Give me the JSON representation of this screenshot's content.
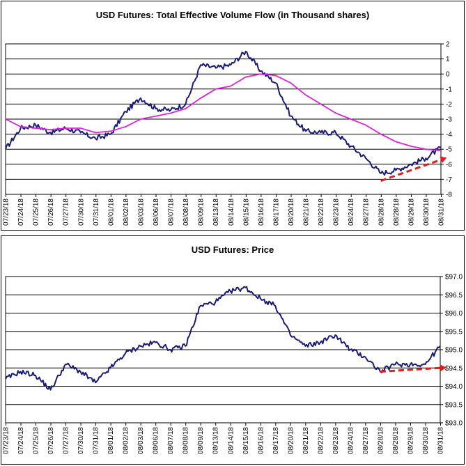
{
  "chart_data": [
    {
      "type": "line",
      "title": "USD Futures: Total Effective Volume Flow (in Thousand shares)",
      "categories": [
        "07/23/18",
        "07/24/18",
        "07/25/18",
        "07/26/18",
        "07/27/18",
        "07/30/18",
        "07/31/18",
        "08/01/18",
        "08/02/18",
        "08/03/18",
        "08/06/18",
        "08/07/18",
        "08/08/18",
        "08/09/18",
        "08/13/18",
        "08/14/18",
        "08/15/18",
        "08/16/18",
        "08/17/18",
        "08/20/18",
        "08/21/18",
        "08/22/18",
        "08/23/18",
        "08/24/18",
        "08/27/18",
        "08/28/18",
        "08/28/18",
        "08/29/18",
        "08/30/18",
        "08/31/18"
      ],
      "ylim": [
        -8,
        2
      ],
      "yticks": [
        2,
        1,
        0,
        -1,
        -2,
        -3,
        -4,
        -5,
        -6,
        -7,
        -8
      ],
      "grid": true,
      "series": [
        {
          "color": "#1a1a7a",
          "values": [
            -5.0,
            -3.6,
            -3.4,
            -3.9,
            -3.6,
            -3.9,
            -4.3,
            -4.0,
            -2.5,
            -1.6,
            -2.3,
            -2.4,
            -2.0,
            0.6,
            0.4,
            0.6,
            1.5,
            0.2,
            -0.6,
            -2.8,
            -3.8,
            -3.9,
            -3.9,
            -4.8,
            -5.6,
            -6.6,
            -6.4,
            -6.0,
            -5.6,
            -4.9
          ]
        },
        {
          "color": "#e020e0",
          "values": [
            -3.0,
            -3.5,
            -3.6,
            -3.7,
            -3.6,
            -3.6,
            -3.9,
            -3.8,
            -3.5,
            -3.0,
            -2.8,
            -2.6,
            -2.3,
            -1.6,
            -1.0,
            -0.8,
            -0.2,
            0.0,
            -0.1,
            -0.6,
            -1.4,
            -2.0,
            -2.6,
            -3.0,
            -3.4,
            -4.0,
            -4.5,
            -4.8,
            -5.0,
            -5.1
          ]
        }
      ],
      "trendline": {
        "color": "#e01e1e",
        "start": [
          25,
          -7.1
        ],
        "end": [
          29,
          -5.7
        ]
      }
    },
    {
      "type": "line",
      "title": "USD Futures: Price",
      "categories": [
        "07/23/18",
        "07/24/18",
        "07/25/18",
        "07/26/18",
        "07/27/18",
        "07/30/18",
        "07/31/18",
        "08/01/18",
        "08/02/18",
        "08/03/18",
        "08/06/18",
        "08/07/18",
        "08/08/18",
        "08/09/18",
        "08/13/18",
        "08/14/18",
        "08/15/18",
        "08/16/18",
        "08/17/18",
        "08/20/18",
        "08/21/18",
        "08/22/18",
        "08/23/18",
        "08/24/18",
        "08/27/18",
        "08/28/18",
        "08/28/18",
        "08/29/18",
        "08/30/18",
        "08/31/18"
      ],
      "ylim": [
        93.0,
        97.0
      ],
      "yticks": [
        "$97.0",
        "$96.5",
        "$96.0",
        "$95.5",
        "$95.0",
        "$94.5",
        "$94.0",
        "$93.5",
        "$93.0"
      ],
      "grid": true,
      "series": [
        {
          "color": "#1a1a7a",
          "values": [
            94.2,
            94.4,
            94.3,
            93.9,
            94.6,
            94.4,
            94.1,
            94.5,
            94.9,
            95.1,
            95.2,
            95.0,
            95.1,
            96.2,
            96.3,
            96.6,
            96.7,
            96.4,
            96.2,
            95.4,
            95.1,
            95.2,
            95.4,
            95.0,
            94.8,
            94.4,
            94.6,
            94.6,
            94.6,
            95.1
          ]
        }
      ],
      "trendline": {
        "color": "#e01e1e",
        "start": [
          25,
          94.4
        ],
        "end": [
          29,
          94.5
        ]
      }
    }
  ]
}
